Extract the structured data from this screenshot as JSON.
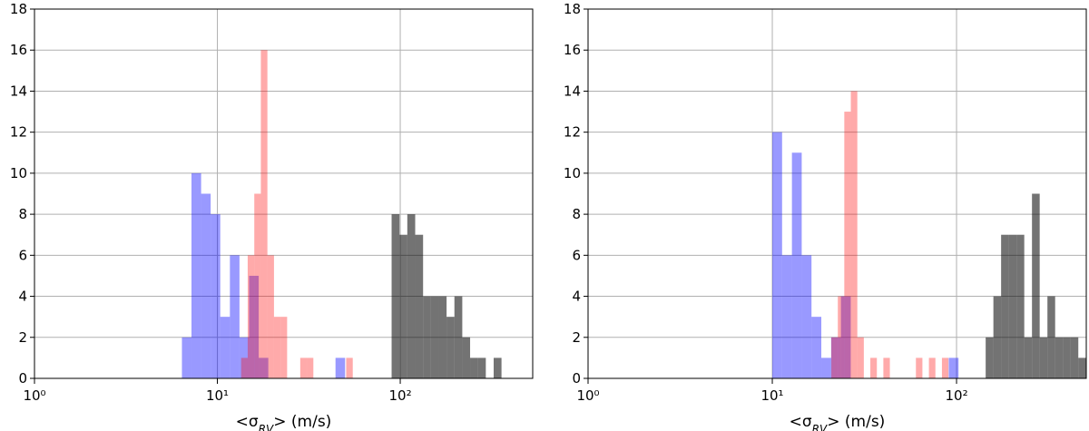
{
  "chart_data": [
    {
      "type": "histogram",
      "xscale": "log",
      "grid": true,
      "xlabel": [
        "<σ",
        "RV",
        "> (m/s)"
      ],
      "xlim": [
        1,
        530
      ],
      "ylim": [
        0,
        18
      ],
      "xticks": [
        {
          "value": 1,
          "label": "10⁰"
        },
        {
          "value": 10,
          "label": "10¹"
        },
        {
          "value": 100,
          "label": "10²"
        }
      ],
      "yticks": [
        0,
        2,
        4,
        6,
        8,
        10,
        12,
        14,
        16,
        18
      ],
      "series": [
        {
          "color": "#0000ff66",
          "bins": [
            6.4,
            7.22,
            8.15,
            9.19,
            10.37,
            11.71,
            13.21,
            14.91,
            16.83,
            18.99,
            21.43,
            24.18,
            27.29,
            30.8,
            34.75,
            39.22,
            44.26,
            49.94
          ],
          "values": [
            2,
            10,
            9,
            8,
            3,
            6,
            2,
            5,
            1,
            0,
            0,
            0,
            0,
            0,
            0,
            0,
            1
          ]
        },
        {
          "color": "#ff000055",
          "bins": [
            13.49,
            14.65,
            15.92,
            17.29,
            18.78,
            20.4,
            22.16,
            24.07,
            26.14,
            28.39,
            30.83,
            33.49,
            36.37,
            39.51,
            42.91,
            46.61,
            50.62,
            55.0
          ],
          "values": [
            1,
            6,
            9,
            16,
            6,
            3,
            3,
            0,
            0,
            1,
            1,
            0,
            0,
            0,
            0,
            0,
            1
          ]
        },
        {
          "color": "#0000008c",
          "bins": [
            89.7,
            99.1,
            109.3,
            120.7,
            133.3,
            147.1,
            162.4,
            179.2,
            197.8,
            218.4,
            241.0,
            266.1,
            293.7,
            324.2,
            357.8
          ],
          "values": [
            8,
            7,
            8,
            7,
            4,
            4,
            4,
            3,
            4,
            2,
            1,
            1,
            0,
            1
          ]
        }
      ]
    },
    {
      "type": "histogram",
      "xscale": "log",
      "grid": true,
      "xlabel": [
        "<σ",
        "RV",
        "> (m/s)"
      ],
      "xlim": [
        1,
        506
      ],
      "ylim": [
        0,
        18
      ],
      "xticks": [
        {
          "value": 1,
          "label": "10⁰"
        },
        {
          "value": 10,
          "label": "10¹"
        },
        {
          "value": 100,
          "label": "10²"
        }
      ],
      "yticks": [
        0,
        2,
        4,
        6,
        8,
        10,
        12,
        14,
        16,
        18
      ],
      "series": [
        {
          "color": "#0000ff66",
          "bins": [
            10.0,
            11.3,
            12.78,
            14.44,
            16.32,
            18.45,
            20.86,
            23.58,
            26.65,
            30.12,
            34.04,
            38.48,
            43.5,
            49.16,
            55.57,
            62.81,
            71.0,
            80.25,
            90.71,
            102.5
          ],
          "values": [
            12,
            6,
            11,
            6,
            3,
            1,
            2,
            4,
            0,
            0,
            0,
            0,
            0,
            0,
            0,
            0,
            0,
            0,
            1
          ]
        },
        {
          "color": "#ff000055",
          "bins": [
            20.91,
            22.68,
            24.59,
            26.68,
            28.94,
            31.39,
            34.05,
            36.94,
            40.07,
            43.46,
            47.14,
            51.14,
            55.47,
            60.17,
            65.27,
            70.8,
            76.8,
            83.31,
            90.36
          ],
          "values": [
            2,
            4,
            13,
            14,
            2,
            0,
            1,
            0,
            1,
            0,
            0,
            0,
            0,
            1,
            0,
            1,
            0,
            1
          ]
        },
        {
          "color": "#0000008c",
          "bins": [
            143.9,
            158.5,
            174.5,
            192.2,
            211.7,
            233.1,
            256.7,
            282.7,
            311.4,
            342.9,
            377.6,
            415.9,
            458.0,
            504.4
          ],
          "values": [
            2,
            4,
            7,
            7,
            7,
            2,
            9,
            2,
            4,
            2,
            2,
            2,
            1
          ]
        }
      ]
    }
  ]
}
